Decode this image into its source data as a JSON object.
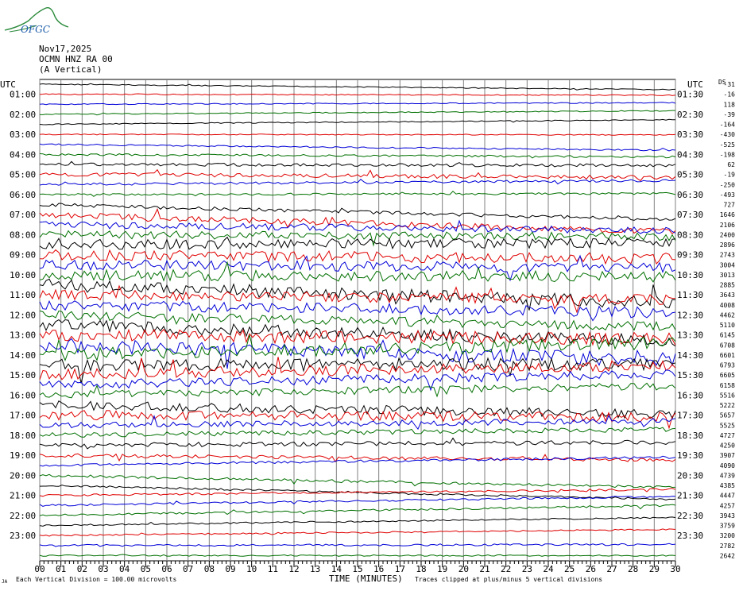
{
  "header": {
    "logo_text": "OFGC",
    "date": "Nov17,2025",
    "station": "OCMN HNZ RA 00",
    "component": "(A Vertical)"
  },
  "left_axis_title": "UTC",
  "right_axis_title": "UTC",
  "right_column_title": "DS",
  "footer": {
    "left_note": "Each Vertical Division = 100.00 microvolts",
    "x_axis_title": "TIME (MINUTES)",
    "right_note": "Traces clipped at plus/minus 5 vertical divisions",
    "corner_mark": "JA"
  },
  "chart_data": {
    "type": "line",
    "title": "Nov17,2025",
    "subtitle": "OCMN HNZ RA 00 (A Vertical)",
    "xlabel": "TIME (MINUTES)",
    "ylabel": "UTC",
    "xlim": [
      0,
      30
    ],
    "x_ticks": [
      "00",
      "01",
      "02",
      "03",
      "04",
      "05",
      "06",
      "07",
      "08",
      "09",
      "10",
      "11",
      "12",
      "13",
      "14",
      "15",
      "16",
      "17",
      "18",
      "19",
      "20",
      "21",
      "22",
      "23",
      "24",
      "25",
      "26",
      "27",
      "28",
      "29",
      "30"
    ],
    "grid": true,
    "trace_colors": [
      "#000000",
      "#e00000",
      "#0000d8",
      "#007000"
    ],
    "left_hour_labels": [
      "01:00",
      "02:00",
      "03:00",
      "04:00",
      "05:00",
      "06:00",
      "07:00",
      "08:00",
      "09:00",
      "10:00",
      "11:00",
      "12:00",
      "13:00",
      "14:00",
      "15:00",
      "16:00",
      "17:00",
      "18:00",
      "19:00",
      "20:00",
      "21:00",
      "22:00",
      "23:00"
    ],
    "right_hour_labels": [
      "01:30",
      "02:30",
      "03:30",
      "04:30",
      "05:30",
      "06:30",
      "07:30",
      "08:30",
      "09:30",
      "10:30",
      "11:30",
      "12:30",
      "13:30",
      "14:30",
      "15:30",
      "16:30",
      "17:30",
      "18:30",
      "19:30",
      "20:30",
      "21:30",
      "22:30",
      "23:30"
    ],
    "offsets_ds": [
      "-31",
      "-16",
      "118",
      "-39",
      "-164",
      "-430",
      "-525",
      "-198",
      "62",
      "-19",
      "-250",
      "-493",
      "727",
      "1646",
      "2106",
      "2400",
      "2896",
      "2743",
      "3004",
      "3013",
      "2885",
      "3643",
      "4008",
      "4462",
      "5110",
      "6145",
      "6708",
      "6601",
      "6793",
      "6605",
      "6158",
      "5516",
      "5222",
      "5657",
      "5525",
      "4727",
      "4250",
      "3907",
      "4090",
      "4739",
      "4385",
      "4447",
      "4257",
      "3943",
      "3759",
      "3200",
      "2782",
      "2642"
    ],
    "traces": [
      {
        "drift": 0.55,
        "noise": 0.2
      },
      {
        "drift": 0.1,
        "noise": 0.2
      },
      {
        "drift": -0.15,
        "noise": 0.2
      },
      {
        "drift": -0.35,
        "noise": 0.2
      },
      {
        "drift": -0.45,
        "noise": 0.2
      },
      {
        "drift": 0.05,
        "noise": 0.2
      },
      {
        "drift": 0.6,
        "noise": 0.3
      },
      {
        "drift": 0.25,
        "noise": 0.4
      },
      {
        "drift": 0.1,
        "noise": 0.6
      },
      {
        "drift": 0.3,
        "noise": 0.8
      },
      {
        "drift": -0.4,
        "noise": 0.5
      },
      {
        "drift": -0.1,
        "noise": 0.4
      },
      {
        "drift": 1.5,
        "noise": 0.7
      },
      {
        "drift": 1.7,
        "noise": 1.2
      },
      {
        "drift": 0.6,
        "noise": 1.4
      },
      {
        "drift": 0.2,
        "noise": 1.6
      },
      {
        "drift": -0.2,
        "noise": 2.0
      },
      {
        "drift": 0.4,
        "noise": 2.2
      },
      {
        "drift": 0.3,
        "noise": 2.0
      },
      {
        "drift": 0.2,
        "noise": 2.2
      },
      {
        "drift": 1.8,
        "noise": 2.5
      },
      {
        "drift": 0.5,
        "noise": 2.0
      },
      {
        "drift": 0.8,
        "noise": 2.2
      },
      {
        "drift": 1.2,
        "noise": 1.8
      },
      {
        "drift": 1.6,
        "noise": 2.5
      },
      {
        "drift": 0.4,
        "noise": 2.6
      },
      {
        "drift": 1.5,
        "noise": 2.8
      },
      {
        "drift": -1.2,
        "noise": 2.5
      },
      {
        "drift": -0.1,
        "noise": 2.5
      },
      {
        "drift": -1.0,
        "noise": 2.2
      },
      {
        "drift": -1.1,
        "noise": 1.8
      },
      {
        "drift": -0.9,
        "noise": 1.5
      },
      {
        "drift": 0.9,
        "noise": 1.8
      },
      {
        "drift": 0.2,
        "noise": 2.0
      },
      {
        "drift": -0.4,
        "noise": 1.2
      },
      {
        "drift": -0.6,
        "noise": 1.0
      },
      {
        "drift": -0.3,
        "noise": 0.9
      },
      {
        "drift": 0.5,
        "noise": 0.7
      },
      {
        "drift": -0.8,
        "noise": 0.5
      },
      {
        "drift": 1.2,
        "noise": 0.5
      },
      {
        "drift": 1.4,
        "noise": 0.4
      },
      {
        "drift": -0.6,
        "noise": 0.4
      },
      {
        "drift": -0.9,
        "noise": 0.4
      },
      {
        "drift": -1.0,
        "noise": 0.4
      },
      {
        "drift": -0.8,
        "noise": 0.3
      },
      {
        "drift": -0.6,
        "noise": 0.3
      },
      {
        "drift": -0.1,
        "noise": 0.4
      },
      {
        "drift": 0.0,
        "noise": 0.3
      }
    ]
  }
}
